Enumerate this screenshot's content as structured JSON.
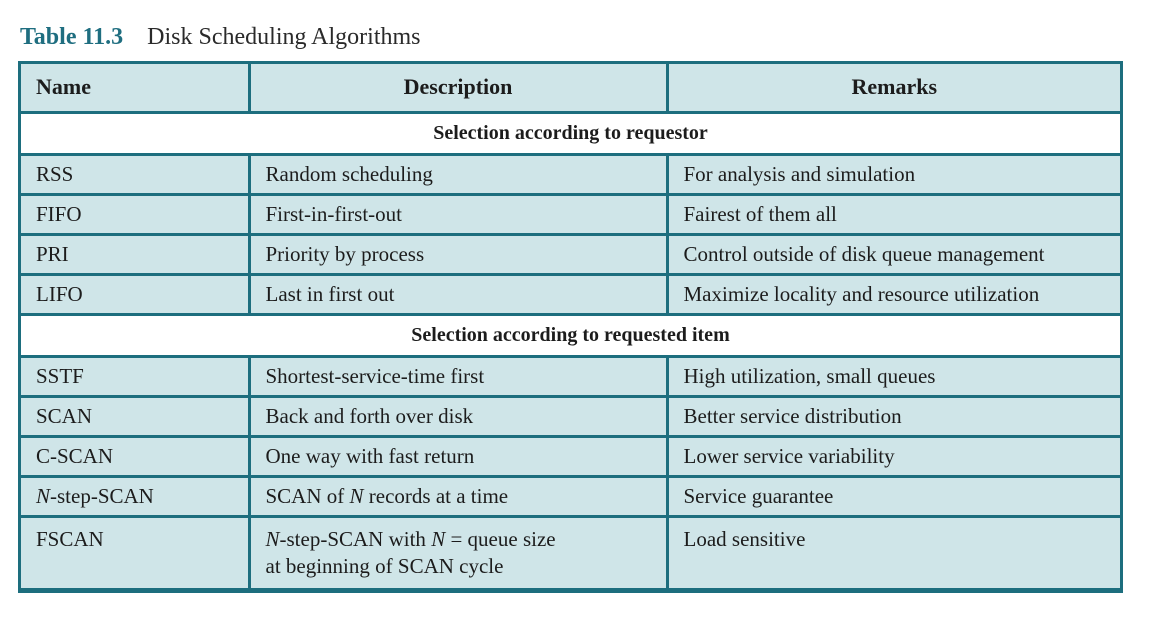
{
  "caption": {
    "label": "Table 11.3",
    "title": "Disk Scheduling Algorithms"
  },
  "table": {
    "headers": [
      "Name",
      "Description",
      "Remarks"
    ],
    "sections": [
      {
        "title": "Selection according to requestor",
        "rows": [
          {
            "name": "RSS",
            "description": "Random scheduling",
            "remarks": "For analysis and simulation"
          },
          {
            "name": "FIFO",
            "description": "First-in-first-out",
            "remarks": "Fairest of them all"
          },
          {
            "name": "PRI",
            "description": "Priority by process",
            "remarks": "Control outside of disk queue management"
          },
          {
            "name": "LIFO",
            "description": "Last in first out",
            "remarks": "Maximize locality and resource utilization"
          }
        ]
      },
      {
        "title": "Selection according to requested item",
        "rows": [
          {
            "name": "SSTF",
            "description": "Shortest-service-time first",
            "remarks": "High utilization, small queues"
          },
          {
            "name": "SCAN",
            "description": "Back and forth over disk",
            "remarks": "Better service distribution"
          },
          {
            "name": "C-SCAN",
            "description": "One way with fast return",
            "remarks": "Lower service variability"
          },
          {
            "name_italic": "N",
            "name_rest": "-step-SCAN",
            "description_a": "SCAN of ",
            "description_italic": "N",
            "description_b": " records at a time",
            "remarks": "Service guarantee"
          },
          {
            "name": "FSCAN",
            "description_line1_italic_a": "N",
            "description_line1_a": "-step-SCAN with ",
            "description_line1_italic_b": "N",
            "description_line1_b": " = queue size",
            "description_line2": "at beginning of SCAN cycle",
            "remarks": "Load sensitive"
          }
        ]
      }
    ]
  }
}
